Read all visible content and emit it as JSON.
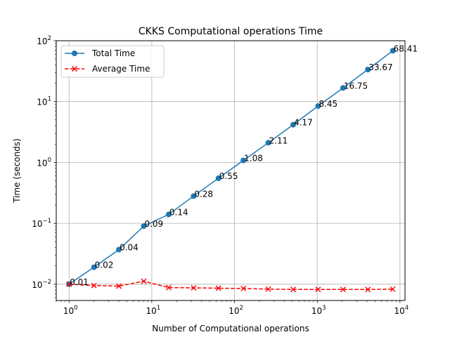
{
  "chart_data": {
    "type": "line",
    "title": "CKKS Computational operations Time",
    "xlabel": "Number of Computational operations",
    "ylabel": "Time (seconds)",
    "xscale": "log",
    "yscale": "log",
    "xlim": [
      0.7,
      11500
    ],
    "ylim": [
      0.0054,
      100
    ],
    "grid": true,
    "legend_position": "top-left",
    "x": [
      1,
      2,
      4,
      8,
      16,
      32,
      64,
      128,
      256,
      512,
      1024,
      2048,
      4096,
      8192
    ],
    "x_ticks": [
      {
        "value": 1,
        "base": "10",
        "exp": "0"
      },
      {
        "value": 10,
        "base": "10",
        "exp": "1"
      },
      {
        "value": 100,
        "base": "10",
        "exp": "2"
      },
      {
        "value": 1000,
        "base": "10",
        "exp": "3"
      },
      {
        "value": 10000,
        "base": "10",
        "exp": "4"
      }
    ],
    "y_ticks": [
      {
        "value": 0.01,
        "base": "10",
        "exp": "−2"
      },
      {
        "value": 0.1,
        "base": "10",
        "exp": "−1"
      },
      {
        "value": 1,
        "base": "10",
        "exp": "0"
      },
      {
        "value": 10,
        "base": "10",
        "exp": "1"
      },
      {
        "value": 100,
        "base": "10",
        "exp": "2"
      }
    ],
    "series": [
      {
        "name": "Total Time",
        "color": "#1f77b4",
        "marker": "circle",
        "line_style": "solid",
        "values": [
          0.01,
          0.019,
          0.037,
          0.09,
          0.14,
          0.28,
          0.55,
          1.08,
          2.11,
          4.17,
          8.45,
          16.75,
          33.67,
          68.41
        ],
        "labels": [
          "0.01",
          "0.02",
          "0.04",
          "0.09",
          "0.14",
          "0.28",
          "0.55",
          "1.08",
          "2.11",
          "4.17",
          "8.45",
          "16.75",
          "33.67",
          "68.41"
        ]
      },
      {
        "name": "Average Time",
        "color": "#ff0000",
        "marker": "x",
        "line_style": "dashed",
        "values": [
          0.01,
          0.0095,
          0.0093,
          0.0112,
          0.0088,
          0.0087,
          0.0086,
          0.0085,
          0.0083,
          0.0082,
          0.0082,
          0.0082,
          0.0082,
          0.0083
        ]
      }
    ]
  }
}
